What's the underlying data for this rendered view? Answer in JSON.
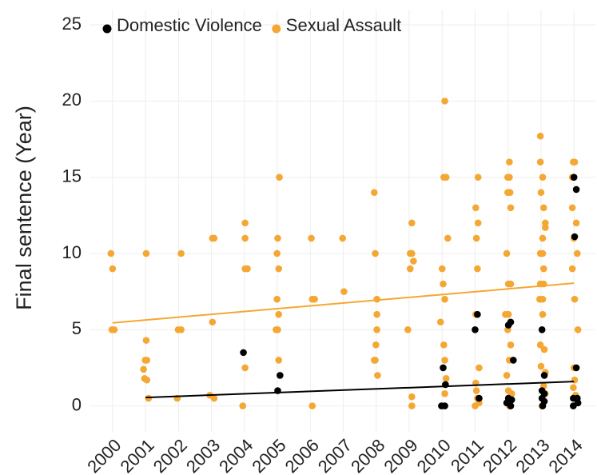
{
  "chart_data": {
    "type": "scatter",
    "y_label": "Final sentence (Year)",
    "xlim": [
      1999.3,
      2014.65
    ],
    "ylim": [
      -1.7,
      26
    ],
    "xticks": [
      2000,
      2001,
      2002,
      2003,
      2004,
      2005,
      2006,
      2007,
      2008,
      2009,
      2010,
      2011,
      2012,
      2013,
      2014
    ],
    "yticks": [
      0,
      5,
      10,
      15,
      20,
      25
    ],
    "grid": true,
    "legend": "top-left",
    "series": [
      {
        "name": "Domestic Violence",
        "color": "#000000",
        "x": [
          2003.97,
          2005.08,
          2005.01,
          2010.03,
          2010.1,
          2009.98,
          2010.08,
          2011.07,
          2011.0,
          2011.12,
          2012.08,
          2012.01,
          2012.16,
          2012.01,
          2012.11,
          2011.96,
          2012.08,
          2013.03,
          2013.1,
          2013.03,
          2013.1,
          2013.03,
          2013.1,
          2013.05,
          2014.0,
          2014.07,
          2014.02,
          2014.07,
          2013.98,
          2014.1,
          2013.98,
          2014.12
        ],
        "values": [
          3.5,
          2,
          1,
          2.5,
          1.4,
          0,
          0,
          6,
          5,
          0.5,
          5.5,
          5.3,
          3,
          0.5,
          0.4,
          0.2,
          0,
          5,
          2,
          1,
          0.8,
          0.5,
          0.3,
          0,
          15,
          14.2,
          11.1,
          2.5,
          0.5,
          0.5,
          0,
          0.2
        ],
        "trend": {
          "x": [
            2001,
            2014
          ],
          "y": [
            0.55,
            1.6
          ]
        }
      },
      {
        "name": "Sexual Assault",
        "color": "#f5a733",
        "x": [
          1999.95,
          2000.0,
          1999.98,
          2000.05,
          2001.02,
          2001.02,
          2001.04,
          2000.99,
          2000.94,
          2000.97,
          2001.04,
          2001.09,
          2002.08,
          2001.99,
          2002.08,
          2001.96,
          2003.03,
          2003.08,
          2003.03,
          2002.95,
          2003.08,
          2004.02,
          2004.02,
          2004.02,
          2004.09,
          2004.02,
          2003.95,
          2005.06,
          2005.01,
          2004.99,
          2005.04,
          2004.99,
          2005.04,
          2004.96,
          2005.01,
          2005.04,
          2006.03,
          2006.06,
          2006.13,
          2006.06,
          2006.98,
          2007.02,
          2007.94,
          2007.97,
          2008.02,
          2008.02,
          2008.02,
          2007.99,
          2007.94,
          2007.97,
          2008.04,
          2009.08,
          2009.03,
          2009.08,
          2009.13,
          2009.03,
          2008.96,
          2009.08,
          2009.08,
          2010.08,
          2010.05,
          2010.12,
          2010.17,
          2010.0,
          2010.03,
          2010.08,
          2009.95,
          2010.05,
          2010.08,
          2010.12,
          2010.08,
          2011.09,
          2011.02,
          2011.09,
          2011.04,
          2011.07,
          2011.02,
          2011.12,
          2011.02,
          2011.04,
          2011.07,
          2011.12,
          2011.0,
          2012.04,
          2011.99,
          2012.04,
          2011.99,
          2012.06,
          2012.08,
          2011.96,
          2012.01,
          2012.08,
          2011.92,
          2012.01,
          2011.99,
          2012.08,
          2012.04,
          2011.96,
          2012.01,
          2012.11,
          2012.04,
          2012.98,
          2012.98,
          2013.05,
          2013.0,
          2013.08,
          2013.13,
          2013.13,
          2013.05,
          2012.98,
          2013.05,
          2013.08,
          2012.98,
          2013.08,
          2012.96,
          2013.05,
          2013.05,
          2012.98,
          2013.1,
          2013.0,
          2013.13,
          2013.08,
          2013.13,
          2013.03,
          2013.98,
          2014.02,
          2013.95,
          2013.95,
          2014.07,
          2014.0,
          2014.1,
          2013.95,
          2014.02,
          2014.12,
          2014.0,
          2014.02,
          2013.98,
          2014.05,
          2014.12
        ],
        "values": [
          10,
          9,
          5,
          5,
          10,
          4.3,
          3,
          3,
          2.4,
          1.8,
          1.7,
          0.5,
          10,
          5,
          5,
          0.5,
          11,
          11,
          5.5,
          0.7,
          0.5,
          12,
          11,
          9,
          9,
          2.5,
          0,
          15,
          11,
          10,
          9,
          7,
          6,
          5,
          5,
          3,
          11,
          7,
          7,
          0,
          11,
          7.5,
          14,
          10,
          7,
          6,
          5,
          4,
          3,
          3,
          2,
          12,
          10,
          10,
          9.5,
          9,
          5,
          0.6,
          0,
          20,
          15,
          15,
          11,
          9,
          8,
          7,
          5.5,
          4,
          3,
          1.8,
          0.8,
          15,
          13,
          12,
          11,
          9,
          6,
          2.5,
          1.5,
          1,
          0.5,
          0.2,
          0,
          16,
          15,
          15,
          14,
          14,
          13,
          10,
          8,
          8,
          6,
          6,
          5,
          4,
          3,
          2,
          1,
          0.8,
          0,
          17.7,
          16,
          15,
          14,
          13,
          12,
          11.7,
          11,
          10,
          10,
          9,
          8,
          8,
          7,
          7,
          6,
          4,
          3.7,
          2.6,
          2.2,
          1.3,
          0.8,
          0,
          16,
          16,
          15,
          13,
          12,
          11,
          10,
          9,
          7,
          5,
          2.5,
          1.7,
          1.2,
          0.7,
          0.2
        ],
        "trend": {
          "x": [
            2000,
            2014
          ],
          "y": [
            5.45,
            8.05
          ]
        }
      }
    ]
  }
}
